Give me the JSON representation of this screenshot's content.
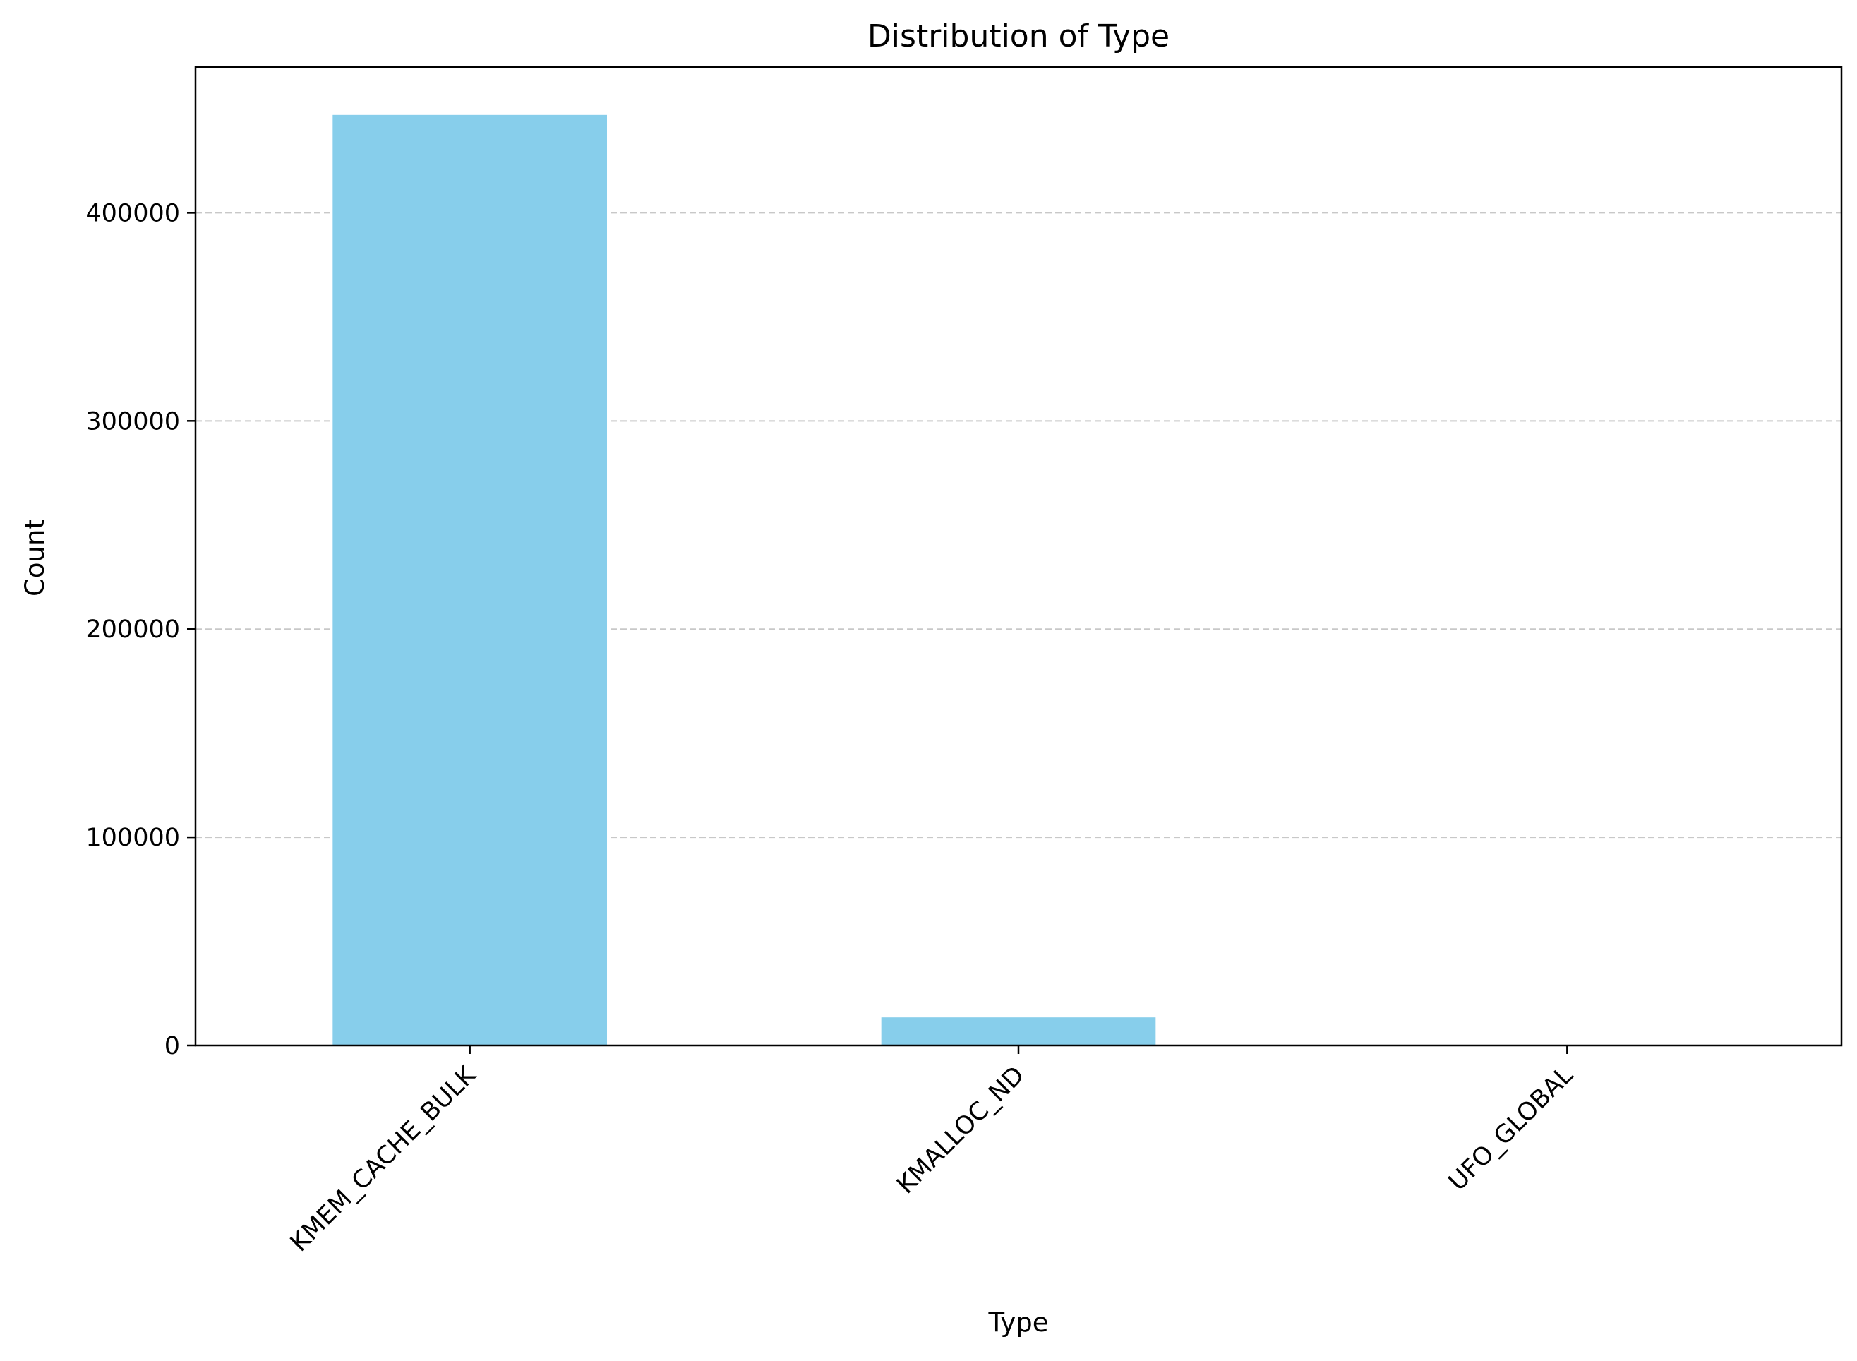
{
  "chart_data": {
    "type": "bar",
    "title": "Distribution of Type",
    "xlabel": "Type",
    "ylabel": "Count",
    "categories": [
      "KMEM_CACHE_BULK",
      "KMALLOC_ND",
      "UFO_GLOBAL"
    ],
    "values": [
      447000,
      13500,
      150
    ],
    "ylim": [
      0,
      470000
    ],
    "yticks": [
      0,
      100000,
      200000,
      300000,
      400000
    ],
    "ytick_labels": [
      "0",
      "100000",
      "200000",
      "300000",
      "400000"
    ],
    "grid": {
      "y": true,
      "x": false,
      "style": "dashed"
    },
    "x_tick_rotation": 45,
    "colors": {
      "bar": "#87CEEB",
      "grid": "#c8c8c8",
      "axis": "#000000"
    }
  }
}
